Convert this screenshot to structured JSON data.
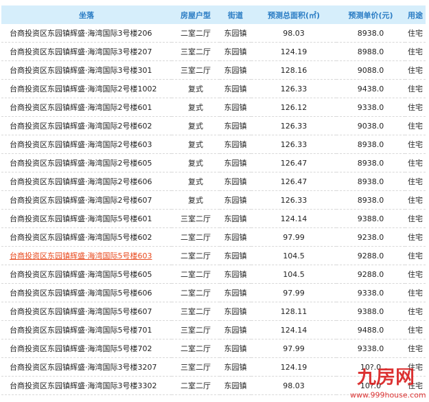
{
  "headers": [
    "坐落",
    "房屋户型",
    "街道",
    "预测总面积(㎡)",
    "预测单价(元)",
    "用途"
  ],
  "rows": [
    [
      "台商投资区东园镇辉盛·海湾国际3号楼206",
      "二室二厅",
      "东园镇",
      "98.03",
      "8938.0",
      "住宅"
    ],
    [
      "台商投资区东园镇辉盛·海湾国际3号楼207",
      "三室二厅",
      "东园镇",
      "124.19",
      "8988.0",
      "住宅"
    ],
    [
      "台商投资区东园镇辉盛·海湾国际3号楼301",
      "三室二厅",
      "东园镇",
      "128.16",
      "9088.0",
      "住宅"
    ],
    [
      "台商投资区东园镇辉盛·海湾国际2号楼1002",
      "复式",
      "东园镇",
      "126.33",
      "9438.0",
      "住宅"
    ],
    [
      "台商投资区东园镇辉盛·海湾国际2号楼601",
      "复式",
      "东园镇",
      "126.12",
      "9338.0",
      "住宅"
    ],
    [
      "台商投资区东园镇辉盛·海湾国际2号楼602",
      "复式",
      "东园镇",
      "126.33",
      "9038.0",
      "住宅"
    ],
    [
      "台商投资区东园镇辉盛·海湾国际2号楼603",
      "复式",
      "东园镇",
      "126.33",
      "8938.0",
      "住宅"
    ],
    [
      "台商投资区东园镇辉盛·海湾国际2号楼605",
      "复式",
      "东园镇",
      "126.47",
      "8938.0",
      "住宅"
    ],
    [
      "台商投资区东园镇辉盛·海湾国际2号楼606",
      "复式",
      "东园镇",
      "126.47",
      "8938.0",
      "住宅"
    ],
    [
      "台商投资区东园镇辉盛·海湾国际2号楼607",
      "复式",
      "东园镇",
      "126.33",
      "8938.0",
      "住宅"
    ],
    [
      "台商投资区东园镇辉盛·海湾国际5号楼601",
      "三室二厅",
      "东园镇",
      "124.14",
      "9388.0",
      "住宅"
    ],
    [
      "台商投资区东园镇辉盛·海湾国际5号楼602",
      "二室二厅",
      "东园镇",
      "97.99",
      "9238.0",
      "住宅"
    ],
    [
      "台商投资区东园镇辉盛·海湾国际5号楼603",
      "二室二厅",
      "东园镇",
      "104.5",
      "9288.0",
      "住宅"
    ],
    [
      "台商投资区东园镇辉盛·海湾国际5号楼605",
      "二室二厅",
      "东园镇",
      "104.5",
      "9288.0",
      "住宅"
    ],
    [
      "台商投资区东园镇辉盛·海湾国际5号楼606",
      "二室二厅",
      "东园镇",
      "97.99",
      "9338.0",
      "住宅"
    ],
    [
      "台商投资区东园镇辉盛·海湾国际5号楼607",
      "三室二厅",
      "东园镇",
      "128.11",
      "9388.0",
      "住宅"
    ],
    [
      "台商投资区东园镇辉盛·海湾国际5号楼701",
      "三室二厅",
      "东园镇",
      "124.14",
      "9488.0",
      "住宅"
    ],
    [
      "台商投资区东园镇辉盛·海湾国际5号楼702",
      "二室二厅",
      "东园镇",
      "97.99",
      "9338.0",
      "住宅"
    ],
    [
      "台商投资区东园镇辉盛·海湾国际3号楼3207",
      "三室二厅",
      "东园镇",
      "124.19",
      "10?.0",
      "住宅"
    ],
    [
      "台商投资区东园镇辉盛·海湾国际3号楼3302",
      "二室二厅",
      "东园镇",
      "98.03",
      "10?.0",
      "住宅"
    ]
  ],
  "highlighted_row": 12,
  "watermark": {
    "logo": "九房网",
    "url": "www.999house.com"
  }
}
